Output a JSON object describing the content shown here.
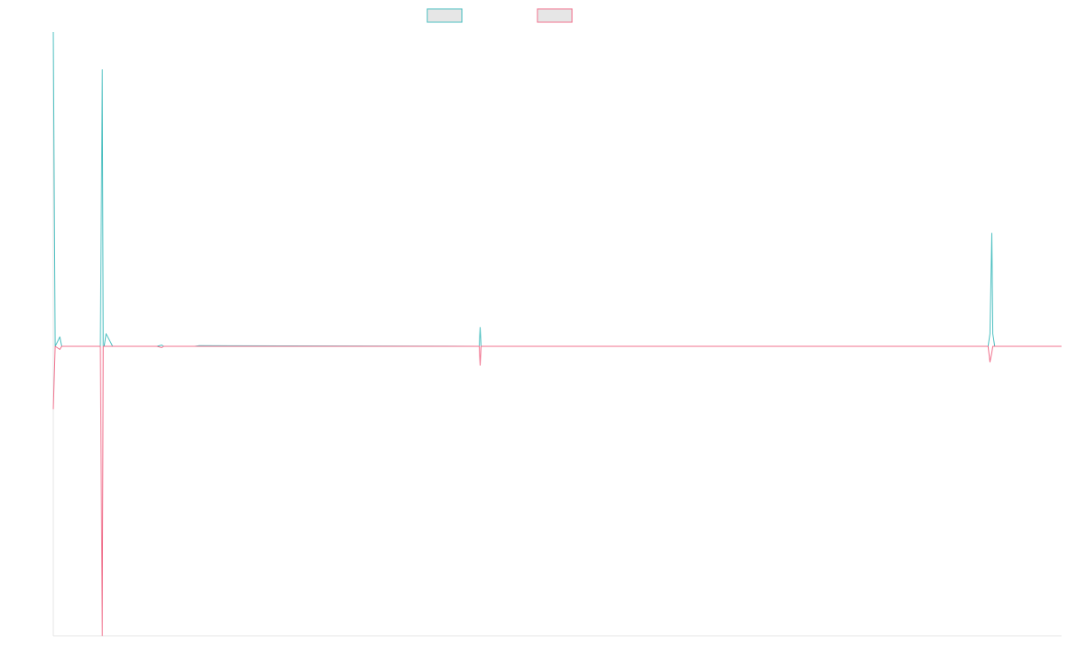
{
  "chart_data": {
    "type": "line",
    "title": "",
    "xlabel": "",
    "ylabel": "",
    "grid": false,
    "legend_position": "top-center",
    "ylim": [
      -50,
      50
    ],
    "xlim": [
      0,
      1070
    ],
    "colors": {
      "series_0": "#4bbfc0",
      "series_1": "#f0708c",
      "axis": "#e4e4e4"
    },
    "series": [
      {
        "color": "#4bbfc0",
        "x": [
          0,
          2,
          7,
          9,
          11,
          50,
          52,
          53,
          54,
          56,
          63,
          65,
          72,
          74,
          110,
          115,
          117,
          150,
          155,
          450,
          452,
          453,
          454,
          456,
          990,
          992,
          994,
          996,
          997,
          999,
          1070
        ],
        "y": [
          50,
          0,
          1.5,
          0,
          0,
          0,
          44,
          0,
          0,
          2,
          0,
          0,
          0,
          0,
          0,
          0.2,
          0,
          0,
          0.1,
          0,
          0,
          3,
          0,
          0,
          0,
          0,
          2,
          18,
          2,
          0,
          0
        ]
      },
      {
        "color": "#f0708c",
        "x": [
          0,
          2,
          7,
          9,
          11,
          50,
          52,
          53,
          54,
          56,
          110,
          115,
          117,
          450,
          452,
          453,
          454,
          456,
          990,
          992,
          994,
          996,
          997,
          999,
          1070
        ],
        "y": [
          -10,
          0,
          -0.5,
          0,
          0,
          0,
          -46,
          0,
          0,
          0,
          0,
          -0.2,
          0,
          0,
          0,
          -3,
          0,
          0,
          0,
          0,
          -2.5,
          -1,
          0,
          0,
          0
        ]
      }
    ]
  }
}
